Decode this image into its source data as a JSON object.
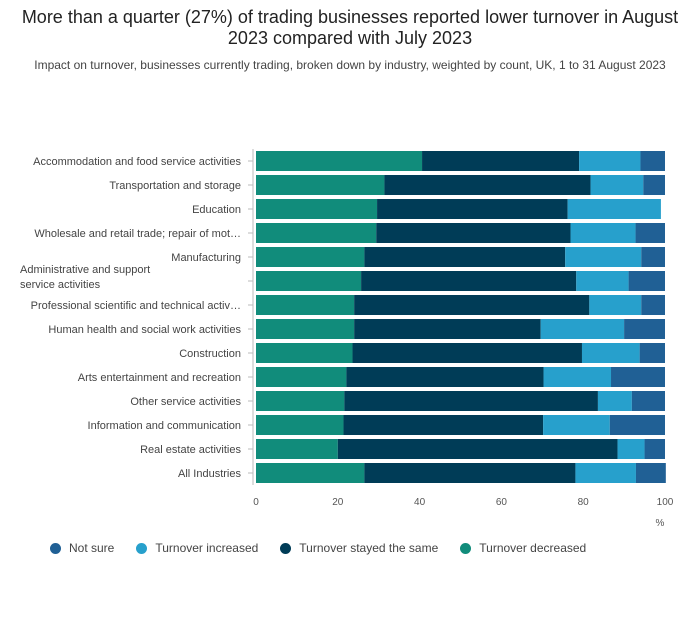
{
  "title": "More than a quarter (27%) of trading businesses reported lower turnover in August 2023 compared with July 2023",
  "subtitle": "Impact on turnover, businesses currently trading, broken down by industry, weighted by count, UK, 1 to 31 August 2023",
  "colors": {
    "not_sure": "#206095",
    "turnover_increased": "#27a0cc",
    "turnover_stayed_the_same": "#003c57",
    "turnover_decreased": "#118c7b"
  },
  "legend": [
    {
      "name": "Not sure",
      "color": "#206095"
    },
    {
      "name": "Turnover increased",
      "color": "#27a0cc"
    },
    {
      "name": "Turnover stayed the same",
      "color": "#003c57"
    },
    {
      "name": "Turnover decreased",
      "color": "#118c7b"
    }
  ],
  "chart_data": {
    "type": "bar",
    "orientation": "horizontal",
    "stacked": true,
    "categories": [
      "Accommodation and food service activities",
      "Transportation and storage",
      "Education",
      "Wholesale and retail trade; repair of mot…",
      "Manufacturing",
      "Administrative and support service activities",
      "Professional scientific and technical activ…",
      "Human health and social work activities",
      "Construction",
      "Arts entertainment and recreation",
      "Other service activities",
      "Information and communication",
      "Real estate activities",
      "All Industries"
    ],
    "series": [
      {
        "name": "Turnover decreased",
        "values": [
          40.6,
          31.4,
          29.6,
          29.4,
          26.5,
          25.7,
          24.0,
          24.0,
          23.6,
          22.1,
          21.6,
          21.4,
          20.0,
          26.5
        ]
      },
      {
        "name": "Turnover stayed the same",
        "values": [
          38.4,
          50.4,
          46.6,
          47.5,
          49.1,
          52.6,
          57.5,
          45.6,
          56.1,
          48.2,
          62.0,
          48.8,
          68.4,
          51.6
        ]
      },
      {
        "name": "Turnover increased",
        "values": [
          15.0,
          12.9,
          22.8,
          15.9,
          18.6,
          12.8,
          12.7,
          20.4,
          14.1,
          16.5,
          8.3,
          16.3,
          6.6,
          14.8
        ]
      },
      {
        "name": "Not sure",
        "values": [
          6.0,
          5.3,
          0.0,
          7.2,
          5.8,
          8.9,
          5.8,
          10.0,
          6.2,
          13.2,
          8.1,
          13.5,
          5.0,
          7.3
        ]
      }
    ],
    "xlim": [
      0,
      100
    ],
    "xticks": [
      0,
      20,
      40,
      60,
      80,
      100
    ],
    "xlabel": "%",
    "ylabel": "",
    "grid": false,
    "legend_position": "bottom"
  }
}
